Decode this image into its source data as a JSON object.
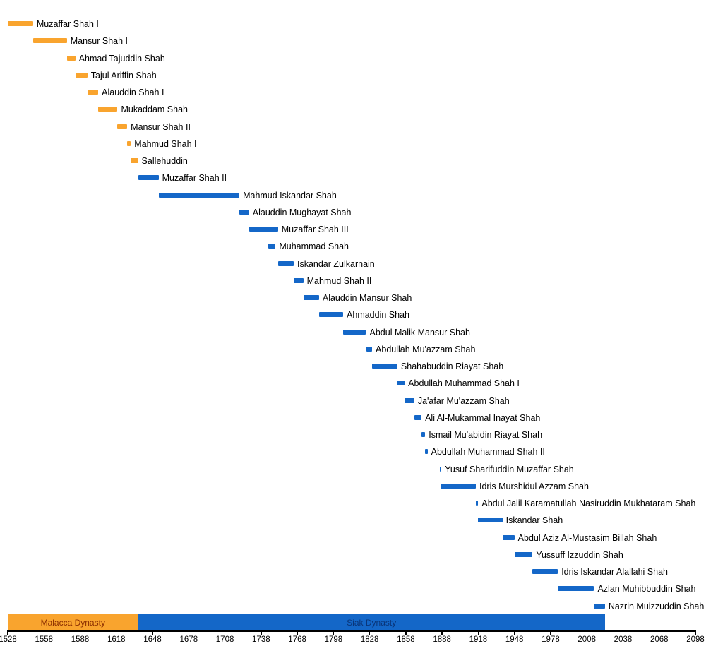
{
  "chart_data": {
    "type": "bar",
    "subtype": "gantt-timeline",
    "orientation": "horizontal",
    "title": "",
    "xlabel": "",
    "ylabel": "",
    "grid": false,
    "legend": "none",
    "x_axis": {
      "min": 1528,
      "max": 2098,
      "tick_interval": 30,
      "ticks": [
        1528,
        1558,
        1588,
        1618,
        1648,
        1678,
        1708,
        1738,
        1768,
        1798,
        1828,
        1858,
        1888,
        1918,
        1948,
        1978,
        2008,
        2038,
        2068,
        2098
      ]
    },
    "colors": {
      "Malacca": "#F9A42E",
      "Siak": "#1467C8",
      "axis": "#000000",
      "label_text": "#000000"
    },
    "series": [
      {
        "name": "Muzaffar Shah I",
        "start": 1528,
        "end": 1549,
        "dynasty": "Malacca"
      },
      {
        "name": "Mansur Shah I",
        "start": 1549,
        "end": 1577,
        "dynasty": "Malacca"
      },
      {
        "name": "Ahmad Tajuddin Shah",
        "start": 1577,
        "end": 1584,
        "dynasty": "Malacca"
      },
      {
        "name": "Tajul Ariffin Shah",
        "start": 1584,
        "end": 1594,
        "dynasty": "Malacca"
      },
      {
        "name": "Alauddin Shah I",
        "start": 1594,
        "end": 1603,
        "dynasty": "Malacca"
      },
      {
        "name": "Mukaddam Shah",
        "start": 1603,
        "end": 1619,
        "dynasty": "Malacca"
      },
      {
        "name": "Mansur Shah II",
        "start": 1619,
        "end": 1627,
        "dynasty": "Malacca"
      },
      {
        "name": "Mahmud Shah I",
        "start": 1627,
        "end": 1630,
        "dynasty": "Malacca"
      },
      {
        "name": "Sallehuddin",
        "start": 1630,
        "end": 1636,
        "dynasty": "Malacca"
      },
      {
        "name": "Muzaffar Shah II",
        "start": 1636,
        "end": 1653,
        "dynasty": "Siak"
      },
      {
        "name": "Mahmud Iskandar Shah",
        "start": 1653,
        "end": 1720,
        "dynasty": "Siak"
      },
      {
        "name": "Alauddin Mughayat Shah",
        "start": 1720,
        "end": 1728,
        "dynasty": "Siak"
      },
      {
        "name": "Muzaffar Shah III",
        "start": 1728,
        "end": 1752,
        "dynasty": "Siak"
      },
      {
        "name": "Muhammad Shah",
        "start": 1744,
        "end": 1750,
        "dynasty": "Siak"
      },
      {
        "name": "Iskandar Zulkarnain",
        "start": 1752,
        "end": 1765,
        "dynasty": "Siak"
      },
      {
        "name": "Mahmud Shah II",
        "start": 1765,
        "end": 1773,
        "dynasty": "Siak"
      },
      {
        "name": "Alauddin Mansur Shah",
        "start": 1773,
        "end": 1786,
        "dynasty": "Siak"
      },
      {
        "name": "Ahmaddin Shah",
        "start": 1786,
        "end": 1806,
        "dynasty": "Siak"
      },
      {
        "name": "Abdul Malik Mansur Shah",
        "start": 1806,
        "end": 1825,
        "dynasty": "Siak"
      },
      {
        "name": "Abdullah Mu'azzam Shah",
        "start": 1825,
        "end": 1830,
        "dynasty": "Siak"
      },
      {
        "name": "Shahabuddin Riayat Shah",
        "start": 1830,
        "end": 1851,
        "dynasty": "Siak"
      },
      {
        "name": "Abdullah Muhammad Shah I",
        "start": 1851,
        "end": 1857,
        "dynasty": "Siak"
      },
      {
        "name": "Ja'afar Mu'azzam Shah",
        "start": 1857,
        "end": 1865,
        "dynasty": "Siak"
      },
      {
        "name": "Ali Al-Mukammal Inayat Shah",
        "start": 1865,
        "end": 1871,
        "dynasty": "Siak"
      },
      {
        "name": "Ismail Mu'abidin Riayat Shah",
        "start": 1871,
        "end": 1874,
        "dynasty": "Siak"
      },
      {
        "name": "Abdullah Muhammad Shah II",
        "start": 1874,
        "end": 1876,
        "dynasty": "Siak"
      },
      {
        "name": "Yusuf Sharifuddin Muzaffar Shah",
        "start": 1886,
        "end": 1887,
        "dynasty": "Siak"
      },
      {
        "name": "Idris Murshidul Azzam Shah",
        "start": 1887,
        "end": 1916,
        "dynasty": "Siak"
      },
      {
        "name": "Abdul Jalil Karamatullah Nasiruddin Mukhataram Shah",
        "start": 1916,
        "end": 1918,
        "dynasty": "Siak"
      },
      {
        "name": "Iskandar Shah",
        "start": 1918,
        "end": 1938,
        "dynasty": "Siak"
      },
      {
        "name": "Abdul Aziz Al-Mustasim Billah Shah",
        "start": 1938,
        "end": 1948,
        "dynasty": "Siak"
      },
      {
        "name": "Yussuff Izzuddin Shah",
        "start": 1948,
        "end": 1963,
        "dynasty": "Siak"
      },
      {
        "name": "Idris Iskandar Alallahi Shah",
        "start": 1963,
        "end": 1984,
        "dynasty": "Siak"
      },
      {
        "name": "Azlan Muhibbuddin Shah",
        "start": 1984,
        "end": 2014,
        "dynasty": "Siak"
      },
      {
        "name": "Nazrin Muizzuddin Shah",
        "start": 2014,
        "end": 2023,
        "dynasty": "Siak"
      }
    ],
    "dynasty_bands": [
      {
        "label": "Malacca Dynasty",
        "start": 1528,
        "end": 1636,
        "color": "#F9A42E",
        "label_color": "#8B2E00"
      },
      {
        "label": "Siak Dynasty",
        "start": 1636,
        "end": 2023,
        "color": "#1467C8",
        "label_color": "#0A3578"
      }
    ]
  }
}
